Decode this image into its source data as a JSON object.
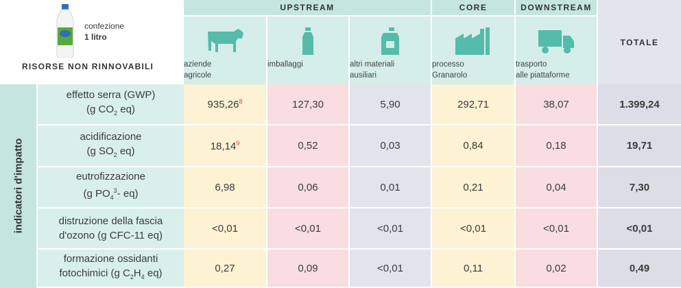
{
  "header": {
    "package_label": [
      "confezione",
      "1 litro"
    ],
    "section_title": "RISORSE NON RINNOVABILI",
    "groups": [
      "UPSTREAM",
      "CORE",
      "DOWNSTREAM"
    ],
    "columns": [
      [
        "aziende",
        "agricole"
      ],
      [
        "imballaggi"
      ],
      [
        "altri materiali",
        "ausiliari"
      ],
      [
        "processo",
        "Granarolo"
      ],
      [
        "trasporto",
        "alle piattaforme"
      ]
    ],
    "total_label": "TOTALE"
  },
  "side_label": "indicatori d'impatto",
  "table": {
    "rows": [
      {
        "label": [
          [
            {
              "t": "effetto serra (GWP)"
            }
          ],
          [
            {
              "t": "(g CO"
            },
            {
              "sub": "2"
            },
            {
              "t": " eq)"
            }
          ]
        ],
        "cells": [
          {
            "v": "935,26",
            "note": "8"
          },
          {
            "v": "127,30"
          },
          {
            "v": "5,90"
          },
          {
            "v": "292,71"
          },
          {
            "v": "38,07"
          }
        ],
        "total": "1.399,24"
      },
      {
        "label": [
          [
            {
              "t": "acidificazione"
            }
          ],
          [
            {
              "t": "(g SO"
            },
            {
              "sub": "2"
            },
            {
              "t": " eq)"
            }
          ]
        ],
        "cells": [
          {
            "v": "18,14",
            "note": "9"
          },
          {
            "v": "0,52"
          },
          {
            "v": "0,03"
          },
          {
            "v": "0,84"
          },
          {
            "v": "0,18"
          }
        ],
        "total": "19,71"
      },
      {
        "label": [
          [
            {
              "t": "eutrofizzazione"
            }
          ],
          [
            {
              "t": "(g PO"
            },
            {
              "sub": "4"
            },
            {
              "sup": "3"
            },
            {
              "t": "- eq)"
            }
          ]
        ],
        "cells": [
          {
            "v": "6,98"
          },
          {
            "v": "0,06"
          },
          {
            "v": "0,01"
          },
          {
            "v": "0,21"
          },
          {
            "v": "0,04"
          }
        ],
        "total": "7,30"
      },
      {
        "label": [
          [
            {
              "t": "distruzione della fascia"
            }
          ],
          [
            {
              "t": "d'ozono (g CFC-11 eq)"
            }
          ]
        ],
        "cells": [
          {
            "v": "<0,01"
          },
          {
            "v": "<0,01"
          },
          {
            "v": "<0,01"
          },
          {
            "v": "<0,01"
          },
          {
            "v": "<0,01"
          }
        ],
        "total": "<0,01"
      },
      {
        "label": [
          [
            {
              "t": "formazione ossidanti"
            }
          ],
          [
            {
              "t": "fotochimici (g C"
            },
            {
              "sub": "2"
            },
            {
              "t": "H"
            },
            {
              "sub": "4"
            },
            {
              "t": " eq)"
            }
          ]
        ],
        "cells": [
          {
            "v": "0,27"
          },
          {
            "v": "0,09"
          },
          {
            "v": "<0,01"
          },
          {
            "v": "0,11"
          },
          {
            "v": "0,02"
          }
        ],
        "total": "0,49"
      }
    ]
  }
}
